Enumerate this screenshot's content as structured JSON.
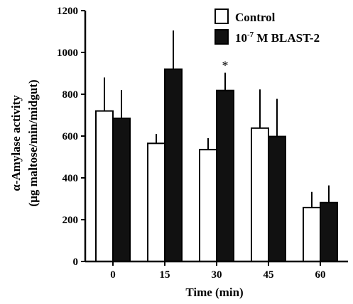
{
  "chart_data": {
    "type": "bar",
    "title": "",
    "xlabel": "Time (min)",
    "ylabel_line1": "α-Amylase activity",
    "ylabel_line2": "(µg maltose/min/midgut)",
    "ylim": [
      0,
      1200
    ],
    "yticks": [
      "0",
      "200",
      "400",
      "600",
      "800",
      "1000",
      "1200"
    ],
    "categories": [
      "0",
      "15",
      "30",
      "45",
      "60"
    ],
    "series": [
      {
        "name": "Control",
        "color": "#ffffff",
        "values": [
          720,
          565,
          535,
          638,
          258
        ],
        "errors": [
          160,
          45,
          55,
          185,
          75
        ]
      },
      {
        "name_prefix": "10",
        "name_superscript": "-7",
        "name_suffix": " M BLAST-2",
        "color": "#111111",
        "values": [
          685,
          920,
          818,
          598,
          282
        ],
        "errors": [
          135,
          185,
          85,
          180,
          82
        ]
      }
    ],
    "annotations": [
      {
        "text": "*",
        "category": "30",
        "series_index": 1
      }
    ],
    "legend_position": "top-right",
    "grid": false
  }
}
